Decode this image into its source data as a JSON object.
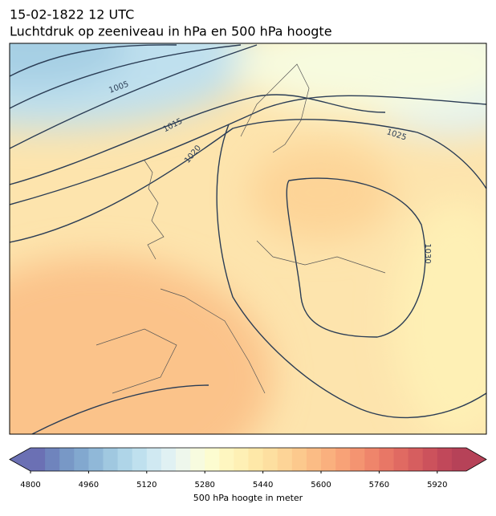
{
  "header": {
    "date": "15-02-1822 12 UTC",
    "title": "Luchtdruk op zeeniveau in hPa en 500 hPa hoogte"
  },
  "map": {
    "contour_labels": [
      1005,
      1015,
      1020,
      1025,
      1030
    ]
  },
  "colorbar": {
    "range": [
      4800,
      6000
    ],
    "ticks": [
      4800,
      4960,
      5120,
      5280,
      5440,
      5600,
      5760,
      5920
    ],
    "label": "500 hPa hoogte in meter",
    "colors": [
      "#6b70b4",
      "#6f84bd",
      "#7898c6",
      "#82a8cf",
      "#90b8d8",
      "#a0c8e0",
      "#afd5e8",
      "#bfe0ee",
      "#d0e9f2",
      "#e0f1f3",
      "#eef7ec",
      "#f7fbdf",
      "#fcfcd0",
      "#fef6c0",
      "#fef0b5",
      "#fee8a8",
      "#fddfa0",
      "#fdd497",
      "#fcc98d",
      "#fbbc85",
      "#fab07e",
      "#f8a277",
      "#f49471",
      "#ef856b",
      "#e87766",
      "#e06a62",
      "#d65e5f",
      "#cc525c",
      "#c1485a",
      "#b64258"
    ]
  }
}
